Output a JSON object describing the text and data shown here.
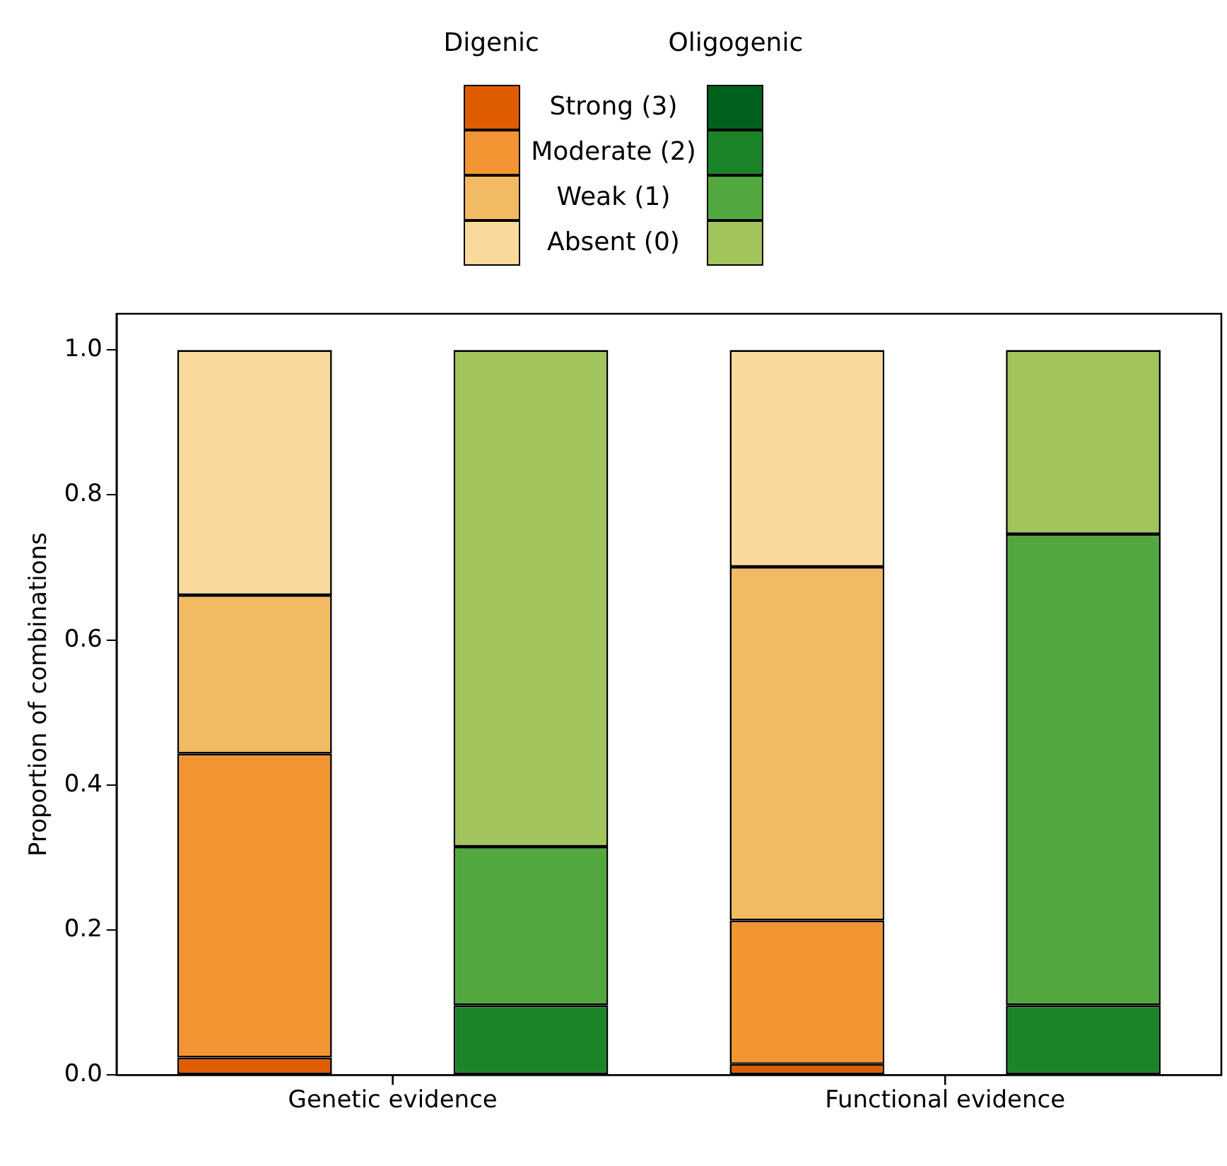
{
  "chart_data": {
    "type": "bar",
    "stacked": true,
    "ylabel": "Proportion of combinations",
    "categories": [
      null,
      null,
      null,
      null
    ],
    "annotations": [
      "Genetic evidence",
      "Functional evidence",
      "Digenic",
      "Oligogenic"
    ],
    "ylim": [
      0,
      1.05
    ],
    "yticks": [
      {
        "value": 0,
        "label": "0.0"
      },
      0.2,
      0.4,
      0.6,
      0.8,
      {
        "value": 1,
        "label": "1.0"
      }
    ],
    "legend": "top",
    "grid": false,
    "series": [
      {
        "name": "Strong (3)",
        "colors": [
          "#e05c00",
          "#00611c",
          "#e05c00",
          "#00611c"
        ],
        "values": [
          0.024,
          null,
          0.015,
          null
        ]
      },
      {
        "name": "Moderate (2)",
        "colors": [
          "#f39433",
          "#1b8429",
          "#f39433",
          "#1b8429"
        ],
        "values": [
          0.419,
          0.096,
          0.198,
          0.096
        ]
      },
      {
        "name": "Weak (1)",
        "colors": [
          "#f3ba64",
          "#52a83e",
          "#f3ba64",
          "#52a83e"
        ],
        "values": [
          0.219,
          0.219,
          0.488,
          0.65
        ]
      },
      {
        "name": "Absent (0)",
        "colors": [
          "#f9da9c",
          "#a2c45c",
          "#f9da9c",
          "#a2c45c"
        ],
        "values": [
          0.338,
          0.685,
          0.299,
          0.254
        ]
      }
    ]
  }
}
